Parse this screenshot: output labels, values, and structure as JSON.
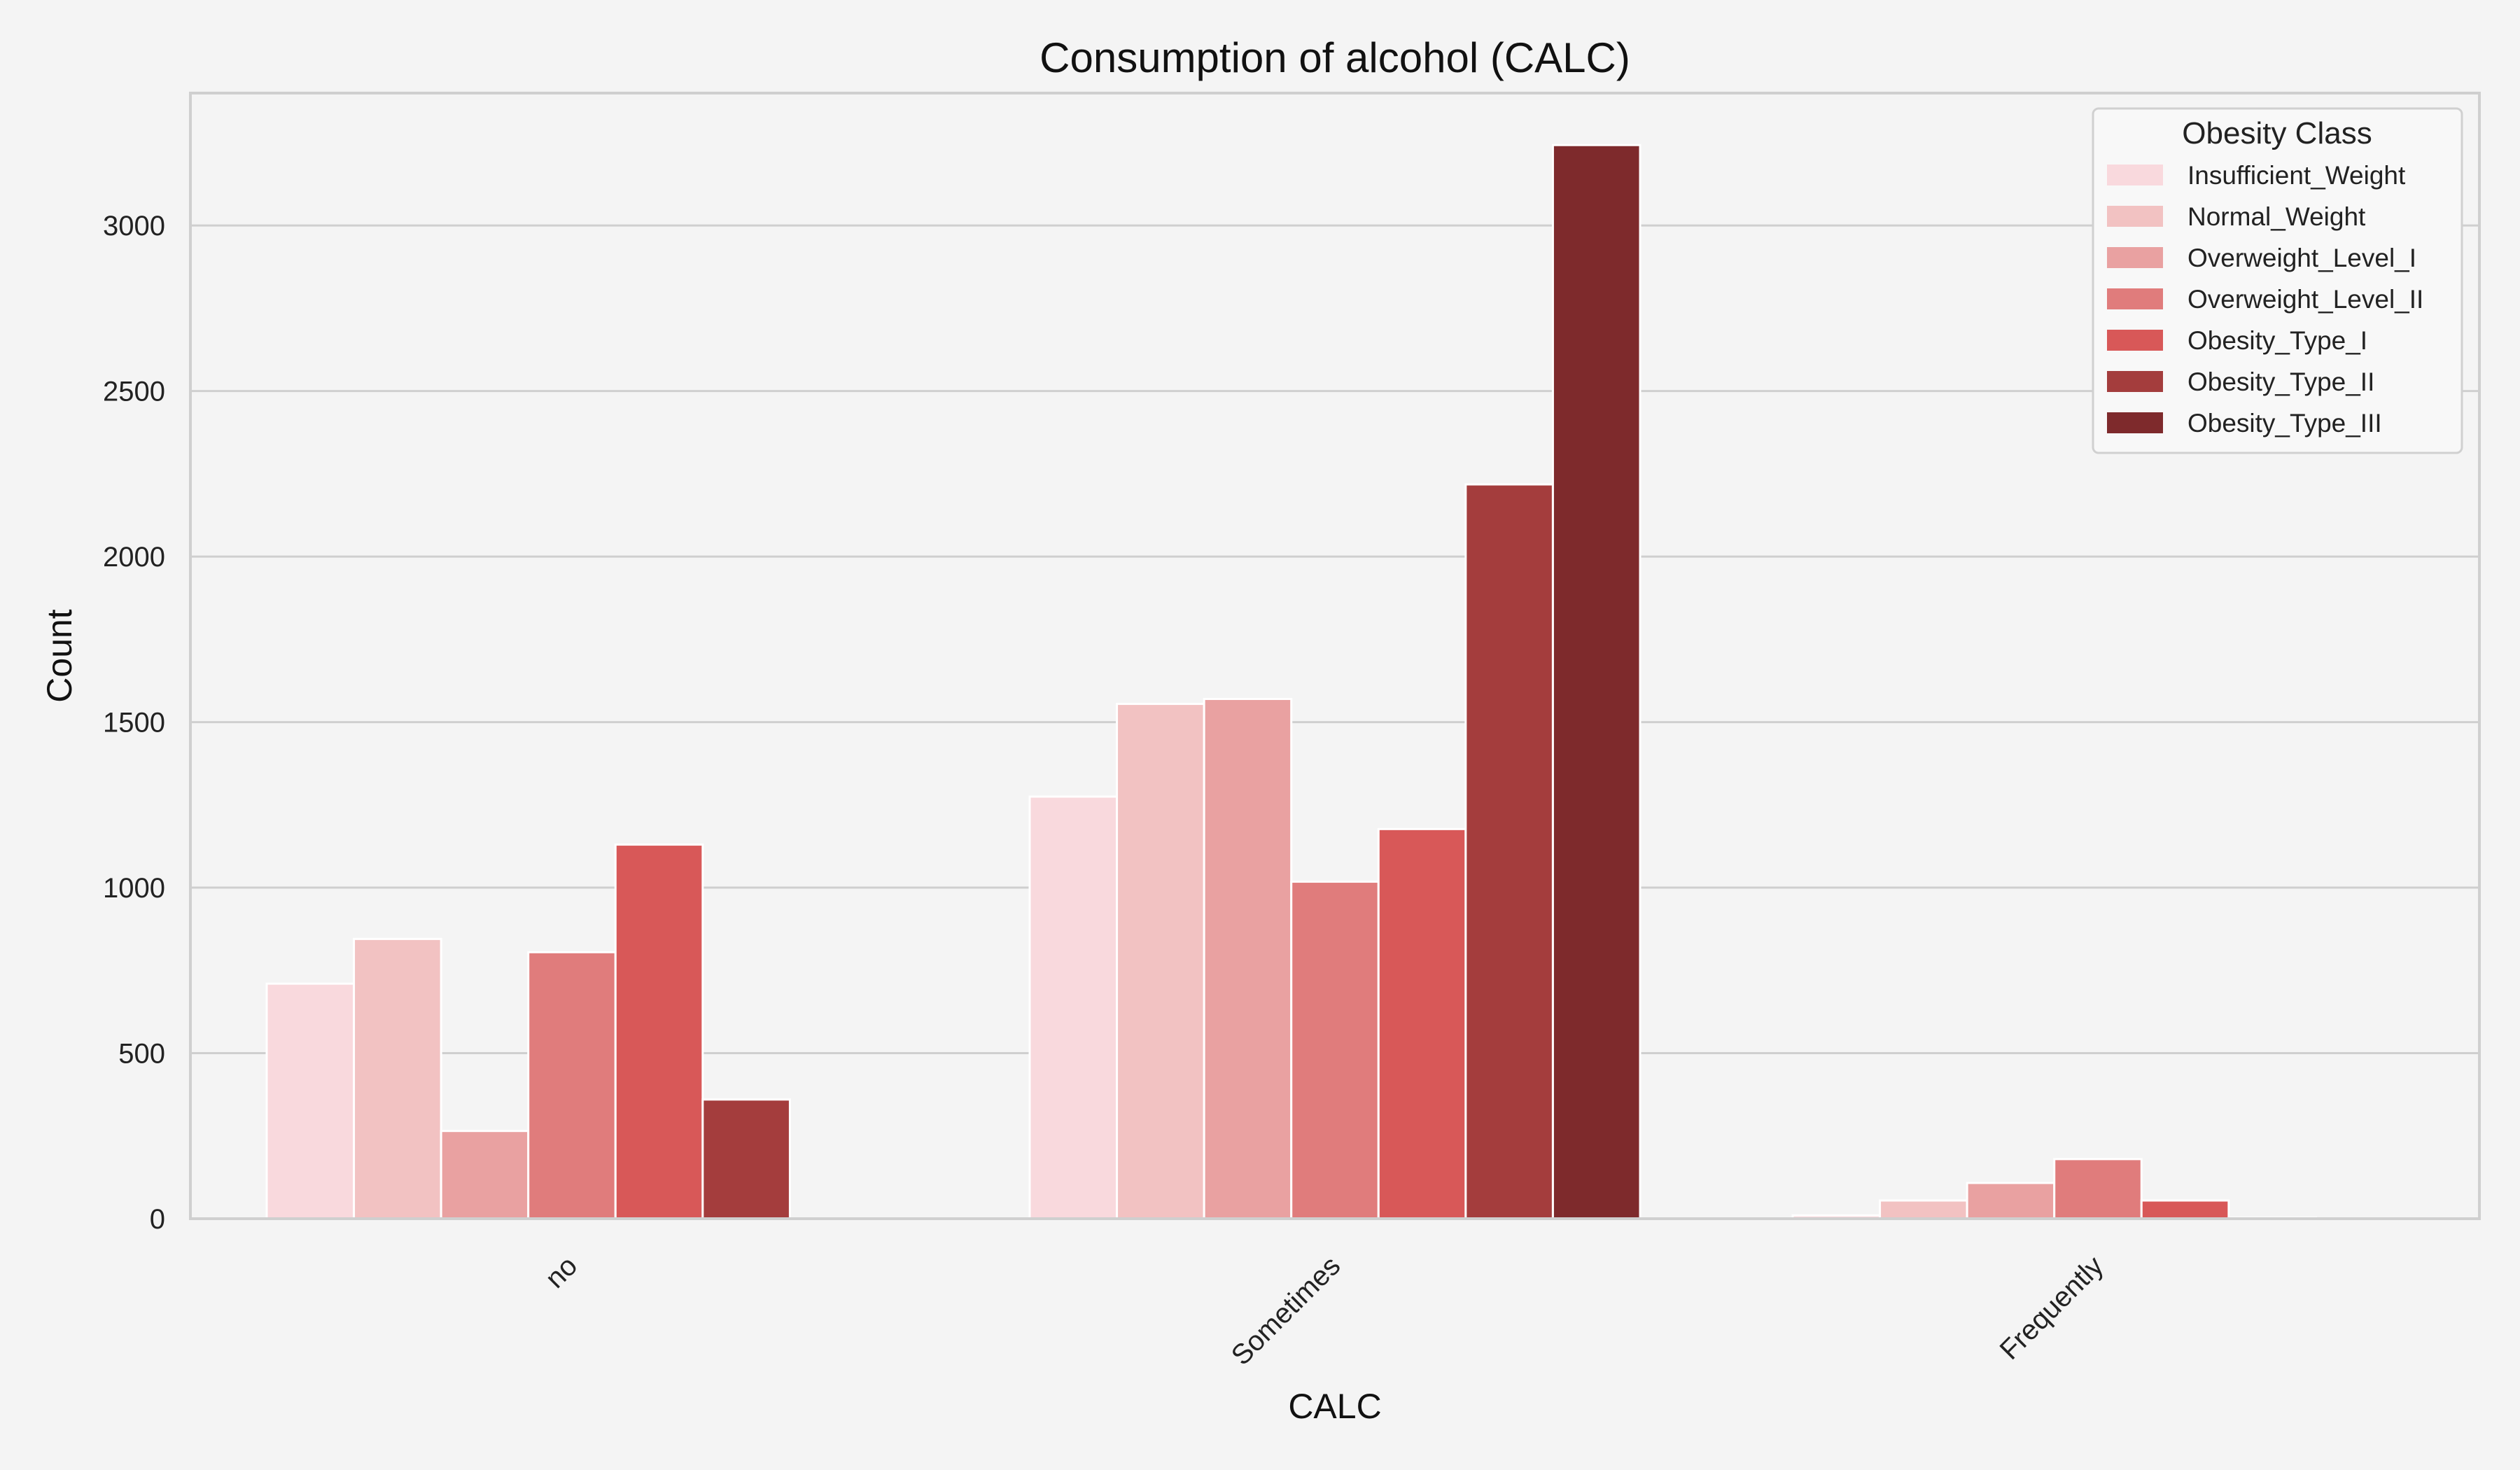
{
  "chart_data": {
    "type": "bar",
    "title": "Consumption of alcohol (CALC)",
    "xlabel": "CALC",
    "ylabel": "Count",
    "categories": [
      "no",
      "Sometimes",
      "Frequently"
    ],
    "ylim": [
      0,
      3400
    ],
    "yticks": [
      0,
      500,
      1000,
      1500,
      2000,
      2500,
      3000
    ],
    "grid": true,
    "legend": {
      "title": "Obesity Class",
      "placement": "top-right"
    },
    "series": [
      {
        "name": "Insufficient_Weight",
        "color": "#f9d9dd",
        "values": [
          710,
          1275,
          10
        ]
      },
      {
        "name": "Normal_Weight",
        "color": "#f2c2c2",
        "values": [
          845,
          1555,
          55
        ]
      },
      {
        "name": "Overweight_Level_I",
        "color": "#e9a1a1",
        "values": [
          265,
          1570,
          108
        ]
      },
      {
        "name": "Overweight_Level_II",
        "color": "#e07c7c",
        "values": [
          805,
          1018,
          180
        ]
      },
      {
        "name": "Obesity_Type_I",
        "color": "#d85858",
        "values": [
          1130,
          1177,
          55
        ]
      },
      {
        "name": "Obesity_Type_II",
        "color": "#a43d3d",
        "values": [
          360,
          2218,
          3
        ]
      },
      {
        "name": "Obesity_Type_III",
        "color": "#7e2a2c",
        "values": [
          0,
          3243,
          1
        ]
      }
    ]
  }
}
